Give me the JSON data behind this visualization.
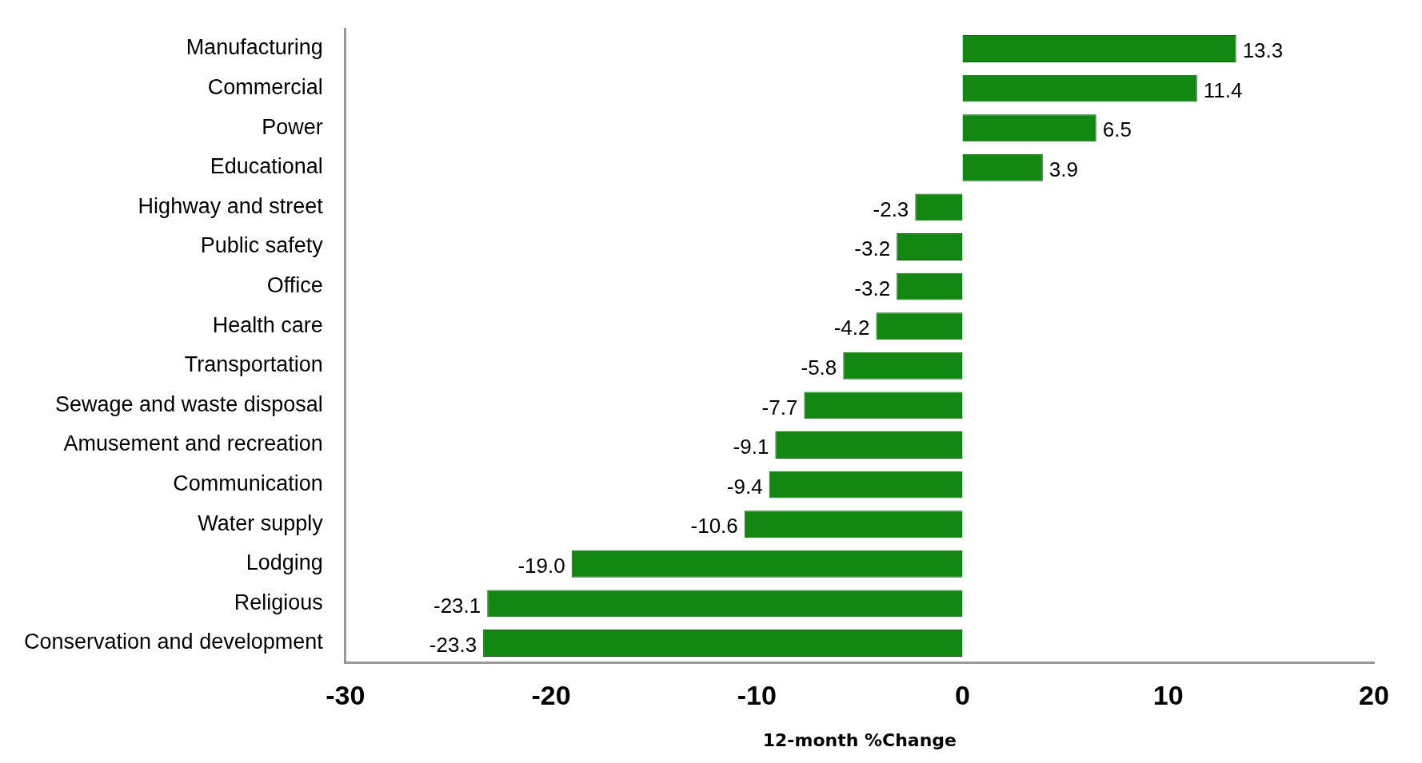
{
  "chart_data": {
    "type": "bar",
    "orientation": "horizontal",
    "xlabel": "12-month %Change",
    "categories": [
      "Manufacturing",
      "Commercial",
      "Power",
      "Educational",
      "Highway and street",
      "Public safety",
      "Office",
      "Health care",
      "Transportation",
      "Sewage and waste disposal",
      "Amusement and recreation",
      "Communication",
      "Water supply",
      "Lodging",
      "Religious",
      "Conservation and development"
    ],
    "values": [
      13.3,
      11.4,
      6.5,
      3.9,
      -2.3,
      -3.2,
      -3.2,
      -4.2,
      -5.8,
      -7.7,
      -9.1,
      -9.4,
      -10.6,
      -19.0,
      -23.1,
      -23.3
    ],
    "value_labels": [
      "13.3",
      "11.4",
      "6.5",
      "3.9",
      "-2.3",
      "-3.2",
      "-3.2",
      "-4.2",
      "-5.8",
      "-7.7",
      "-9.1",
      "-9.4",
      "-10.6",
      "-19.0",
      "-23.1",
      "-23.3"
    ],
    "color": "#128812",
    "xlim": [
      -30,
      20
    ],
    "xticks": [
      -30,
      -20,
      -10,
      0,
      10,
      20
    ],
    "grid": false,
    "legend": false
  }
}
